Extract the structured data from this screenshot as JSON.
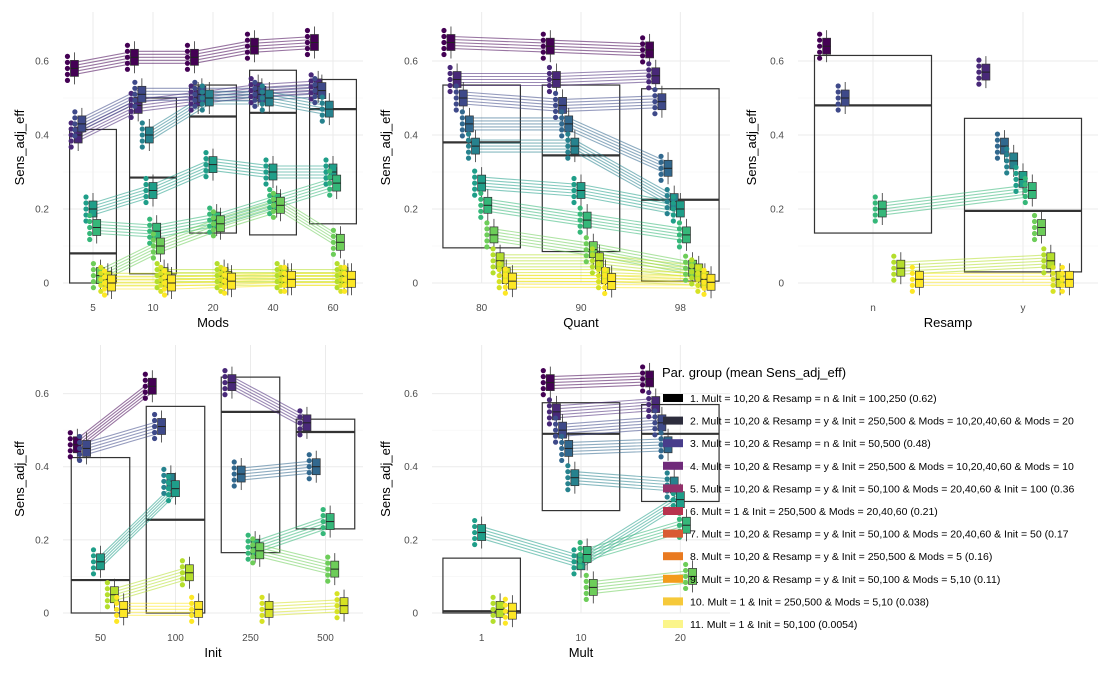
{
  "palette": [
    "#440154",
    "#482878",
    "#3E4989",
    "#31688E",
    "#26828E",
    "#1F9E89",
    "#35B779",
    "#6DCD59",
    "#B4DE2C",
    "#D6E224",
    "#FDE725"
  ],
  "chart_data": [
    {
      "type": "box",
      "xlabel": "Mods",
      "ylabel": "Sens_adj_eff",
      "categories": [
        "5",
        "10",
        "20",
        "40",
        "60"
      ],
      "ylim": [
        0,
        0.7
      ],
      "yticks": [
        "0",
        "0.2",
        "0.4",
        "0.6"
      ],
      "ytick_values": [
        0,
        0.2,
        0.4,
        0.6
      ],
      "overall_boxes": [
        {
          "category": "5",
          "q1": 0.0,
          "median": 0.08,
          "q3": 0.415
        },
        {
          "category": "10",
          "q1": 0.025,
          "median": 0.285,
          "q3": 0.5
        },
        {
          "category": "20",
          "q1": 0.135,
          "median": 0.45,
          "q3": 0.535
        },
        {
          "category": "40",
          "q1": 0.13,
          "median": 0.46,
          "q3": 0.575
        },
        {
          "category": "60",
          "q1": 0.16,
          "median": 0.47,
          "q3": 0.55
        }
      ],
      "group_medians": [
        [
          0.58,
          0.61,
          0.61,
          0.64,
          0.65
        ],
        [
          0.4,
          0.48,
          0.5,
          0.52,
          0.53
        ],
        [
          0.43,
          0.51,
          0.51,
          0.51,
          0.52
        ],
        null,
        [
          null,
          0.4,
          0.5,
          0.5,
          0.47
        ],
        [
          0.2,
          0.25,
          0.32,
          0.3,
          0.3
        ],
        [
          0.15,
          0.14,
          0.17,
          0.22,
          0.27
        ],
        [
          0.02,
          0.1,
          0.16,
          0.21,
          0.11
        ],
        [
          null,
          0.02,
          0.02,
          0.02,
          0.02
        ],
        [
          0.01,
          0.01,
          0.01,
          0.01,
          0.01
        ],
        [
          0.0,
          0.0,
          0.005,
          0.01,
          0.01
        ]
      ]
    },
    {
      "type": "box",
      "xlabel": "Quant",
      "ylabel": "Sens_adj_eff",
      "categories": [
        "80",
        "90",
        "98"
      ],
      "ylim": [
        0,
        0.7
      ],
      "yticks": [
        "0",
        "0.2",
        "0.4",
        "0.6"
      ],
      "ytick_values": [
        0,
        0.2,
        0.4,
        0.6
      ],
      "overall_boxes": [
        {
          "category": "80",
          "q1": 0.095,
          "median": 0.38,
          "q3": 0.535
        },
        {
          "category": "90",
          "q1": 0.085,
          "median": 0.345,
          "q3": 0.535
        },
        {
          "category": "98",
          "q1": 0.005,
          "median": 0.225,
          "q3": 0.525
        }
      ],
      "group_medians": [
        [
          0.65,
          0.64,
          0.63
        ],
        [
          0.55,
          0.55,
          0.56
        ],
        [
          0.5,
          0.48,
          0.49
        ],
        [
          0.43,
          0.43,
          0.31
        ],
        [
          0.37,
          0.37,
          0.22
        ],
        [
          0.27,
          0.25,
          0.2
        ],
        [
          0.21,
          0.17,
          0.13
        ],
        [
          0.13,
          0.09,
          0.04
        ],
        [
          0.06,
          0.06,
          0.03
        ],
        [
          0.02,
          0.02,
          0.01
        ],
        [
          0.005,
          0.004,
          0.002
        ]
      ]
    },
    {
      "type": "box",
      "xlabel": "Resamp",
      "ylabel": "Sens_adj_eff",
      "categories": [
        "n",
        "y"
      ],
      "ylim": [
        0,
        0.7
      ],
      "yticks": [
        "0",
        "0.2",
        "0.4",
        "0.6"
      ],
      "ytick_values": [
        0,
        0.2,
        0.4,
        0.6
      ],
      "overall_boxes": [
        {
          "category": "n",
          "q1": 0.135,
          "median": 0.48,
          "q3": 0.615
        },
        {
          "category": "y",
          "q1": 0.03,
          "median": 0.195,
          "q3": 0.445
        }
      ],
      "group_medians": [
        [
          0.64,
          null
        ],
        [
          null,
          0.57
        ],
        [
          0.5,
          null
        ],
        [
          null,
          0.37
        ],
        [
          null,
          0.33
        ],
        [
          null,
          0.28
        ],
        [
          0.2,
          0.25
        ],
        [
          null,
          0.15
        ],
        [
          0.04,
          0.06
        ],
        [
          null,
          0.01
        ],
        [
          0.01,
          0.01
        ]
      ]
    },
    {
      "type": "box",
      "xlabel": "Init",
      "ylabel": "Sens_adj_eff",
      "categories": [
        "50",
        "100",
        "250",
        "500"
      ],
      "ylim": [
        0,
        0.7
      ],
      "yticks": [
        "0",
        "0.2",
        "0.4",
        "0.6"
      ],
      "ytick_values": [
        0,
        0.2,
        0.4,
        0.6
      ],
      "overall_boxes": [
        {
          "category": "50",
          "q1": 0.0,
          "median": 0.09,
          "q3": 0.425
        },
        {
          "category": "100",
          "q1": 0.0,
          "median": 0.255,
          "q3": 0.565
        },
        {
          "category": "250",
          "q1": 0.165,
          "median": 0.55,
          "q3": 0.645
        },
        {
          "category": "500",
          "q1": 0.23,
          "median": 0.495,
          "q3": 0.53
        }
      ],
      "group_medians": [
        [
          0.46,
          0.62,
          null,
          null
        ],
        [
          null,
          null,
          0.63,
          0.52
        ],
        [
          0.45,
          0.51,
          null,
          null
        ],
        [
          null,
          null,
          0.38,
          0.4
        ],
        [
          null,
          0.36,
          null,
          null
        ],
        [
          0.14,
          0.34,
          null,
          null
        ],
        [
          null,
          null,
          0.18,
          0.25
        ],
        [
          null,
          null,
          0.17,
          0.12
        ],
        [
          0.05,
          0.11,
          null,
          null
        ],
        [
          null,
          null,
          0.01,
          0.02
        ],
        [
          0.01,
          0.01,
          null,
          null
        ]
      ]
    },
    {
      "type": "box",
      "xlabel": "Mult",
      "ylabel": "Sens_adj_eff",
      "categories": [
        "1",
        "10",
        "20"
      ],
      "ylim": [
        0,
        0.7
      ],
      "yticks": [
        "0",
        "0.2",
        "0.4",
        "0.6"
      ],
      "ytick_values": [
        0,
        0.2,
        0.4,
        0.6
      ],
      "overall_boxes": [
        {
          "category": "1",
          "q1": 0.0,
          "median": 0.005,
          "q3": 0.15
        },
        {
          "category": "10",
          "q1": 0.28,
          "median": 0.49,
          "q3": 0.575
        },
        {
          "category": "20",
          "q1": 0.305,
          "median": 0.49,
          "q3": 0.57
        }
      ],
      "group_medians": [
        [
          null,
          0.63,
          0.64
        ],
        [
          null,
          0.55,
          0.57
        ],
        [
          null,
          0.5,
          0.52
        ],
        [
          null,
          0.45,
          0.46
        ],
        [
          null,
          0.37,
          0.35
        ],
        [
          0.22,
          0.14,
          0.31
        ],
        [
          null,
          0.16,
          0.24
        ],
        [
          null,
          0.07,
          0.1
        ],
        [
          0.01,
          null,
          null
        ],
        [
          null,
          null,
          null
        ],
        [
          0.005,
          null,
          null
        ]
      ]
    }
  ],
  "legend": {
    "title": "Par. group (mean Sens_adj_eff)",
    "items": [
      "1. Mult = 10,20 & Resamp = n & Init = 100,250 (0.62)",
      "2. Mult = 10,20 & Resamp = y & Init = 250,500 & Mods = 10,20,40,60 & Mods = 20",
      "3. Mult = 10,20 & Resamp = n & Init = 50,500 (0.48)",
      "4. Mult = 10,20 & Resamp = y & Init = 250,500 & Mods = 10,20,40,60 & Mods = 10",
      "5. Mult = 10,20 & Resamp = y & Init = 50,100 & Mods = 20,40,60 & Init = 100 (0.36",
      "6. Mult = 1 & Init = 250,500 & Mods = 20,40,60 (0.21)",
      "7. Mult = 10,20 & Resamp = y & Init = 50,100 & Mods = 20,40,60 & Init = 50 (0.17",
      "8. Mult = 10,20 & Resamp = y & Init = 250,500 & Mods = 5 (0.16)",
      "9. Mult = 10,20 & Resamp = y & Init = 50,100 & Mods = 5,10 (0.11)",
      "10. Mult = 1 & Init = 250,500 & Mods = 5,10 (0.038)",
      "11. Mult = 1 & Init = 50,100 (0.0054)"
    ],
    "colors": [
      "#000000",
      "#2d2d3d",
      "#483D8B",
      "#6F2A7A",
      "#93306A",
      "#B8334E",
      "#D95A33",
      "#E97A20",
      "#F39C1C",
      "#F6C93A",
      "#FBF58A"
    ]
  }
}
